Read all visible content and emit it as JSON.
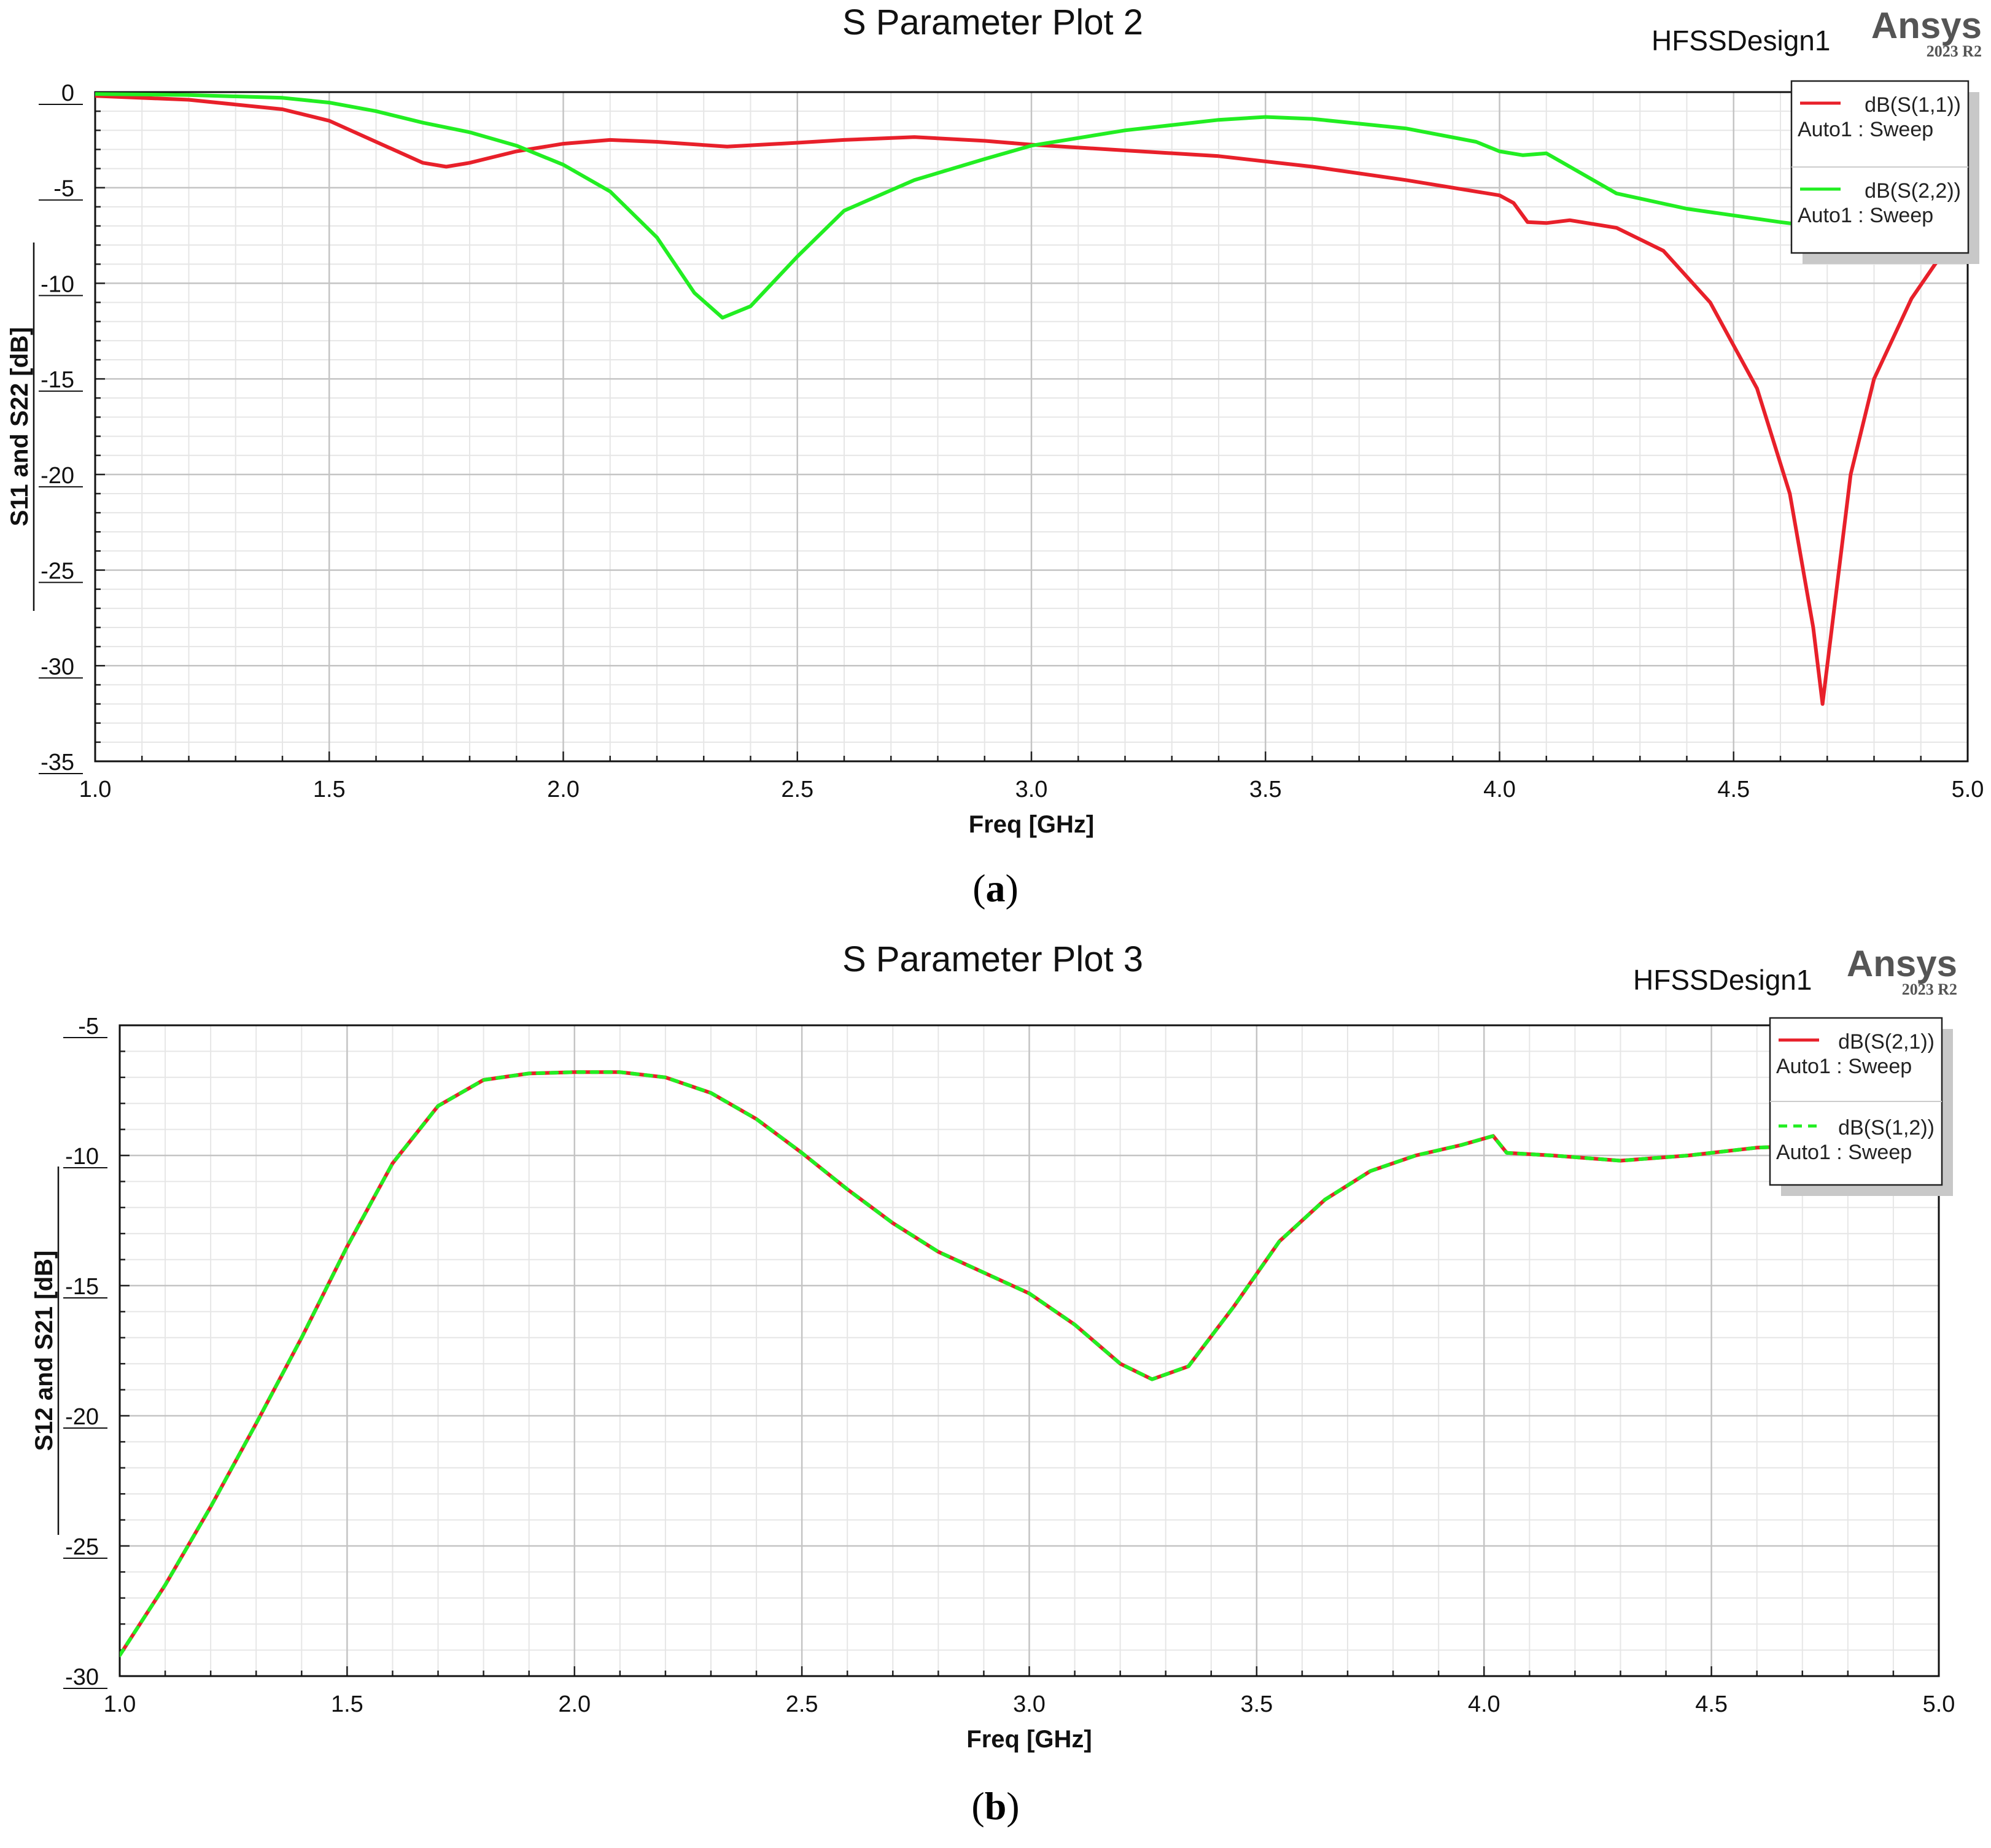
{
  "figure_a": {
    "caption_open": "(",
    "caption_letter": "a",
    "caption_close": ")",
    "title": "S Parameter Plot 2",
    "design_label": "HFSSDesign1",
    "brand": "Ansys",
    "brand_version": "2023 R2",
    "legend": [
      {
        "label": "dB(S(1,1))",
        "sub": "Auto1 : Sweep",
        "color": "#e8202a",
        "dash": false
      },
      {
        "label": "dB(S(2,2))",
        "sub": "Auto1 : Sweep",
        "color": "#22ee22",
        "dash": false
      }
    ]
  },
  "figure_b": {
    "caption_open": "(",
    "caption_letter": "b",
    "caption_close": ")",
    "title": "S Parameter Plot 3",
    "design_label": "HFSSDesign1",
    "brand": "Ansys",
    "brand_version": "2023 R2",
    "legend": [
      {
        "label": "dB(S(2,1))",
        "sub": "Auto1 : Sweep",
        "color": "#e8202a",
        "dash": false
      },
      {
        "label": "dB(S(1,2))",
        "sub": "Auto1 : Sweep",
        "color": "#22ee22",
        "dash": true
      }
    ]
  },
  "chart_data": [
    {
      "type": "line",
      "title": "S Parameter Plot 2",
      "xlabel": "Freq [GHz]",
      "ylabel": "S11 and S22 [dB]",
      "xlim": [
        1.0,
        5.0
      ],
      "ylim": [
        -35,
        0
      ],
      "xticks": [
        1.0,
        1.5,
        2.0,
        2.5,
        3.0,
        3.5,
        4.0,
        4.5,
        5.0
      ],
      "xtick_labels": [
        "1.0",
        "1.5",
        "2.0",
        "2.5",
        "3.0",
        "3.5",
        "4.0",
        "4.5",
        "5.0"
      ],
      "yticks": [
        0,
        -5,
        -10,
        -15,
        -20,
        -25,
        -30,
        -35
      ],
      "ytick_labels": [
        "0",
        "-5",
        "-10",
        "-15",
        "-20",
        "-25",
        "-30",
        "-35"
      ],
      "grid": true,
      "legend_position": "top-right",
      "series": [
        {
          "name": "dB(S(1,1))",
          "color": "#e8202a",
          "points": [
            [
              1.0,
              -0.2
            ],
            [
              1.2,
              -0.4
            ],
            [
              1.4,
              -0.9
            ],
            [
              1.5,
              -1.5
            ],
            [
              1.6,
              -2.6
            ],
            [
              1.7,
              -3.7
            ],
            [
              1.75,
              -3.9
            ],
            [
              1.8,
              -3.7
            ],
            [
              1.9,
              -3.1
            ],
            [
              2.0,
              -2.7
            ],
            [
              2.1,
              -2.5
            ],
            [
              2.2,
              -2.6
            ],
            [
              2.35,
              -2.85
            ],
            [
              2.5,
              -2.65
            ],
            [
              2.6,
              -2.5
            ],
            [
              2.75,
              -2.35
            ],
            [
              2.9,
              -2.55
            ],
            [
              3.0,
              -2.75
            ],
            [
              3.2,
              -3.05
            ],
            [
              3.4,
              -3.35
            ],
            [
              3.6,
              -3.9
            ],
            [
              3.8,
              -4.6
            ],
            [
              4.0,
              -5.4
            ],
            [
              4.03,
              -5.8
            ],
            [
              4.06,
              -6.8
            ],
            [
              4.1,
              -6.85
            ],
            [
              4.15,
              -6.7
            ],
            [
              4.25,
              -7.1
            ],
            [
              4.35,
              -8.3
            ],
            [
              4.45,
              -11.0
            ],
            [
              4.55,
              -15.5
            ],
            [
              4.62,
              -21.0
            ],
            [
              4.67,
              -28.0
            ],
            [
              4.69,
              -32.0
            ],
            [
              4.71,
              -28.0
            ],
            [
              4.75,
              -20.0
            ],
            [
              4.8,
              -15.0
            ],
            [
              4.88,
              -10.8
            ],
            [
              4.95,
              -8.3
            ],
            [
              5.0,
              -7.0
            ]
          ]
        },
        {
          "name": "dB(S(2,2))",
          "color": "#22ee22",
          "points": [
            [
              1.0,
              -0.1
            ],
            [
              1.2,
              -0.15
            ],
            [
              1.4,
              -0.3
            ],
            [
              1.5,
              -0.55
            ],
            [
              1.6,
              -1.0
            ],
            [
              1.7,
              -1.6
            ],
            [
              1.8,
              -2.1
            ],
            [
              1.9,
              -2.8
            ],
            [
              2.0,
              -3.8
            ],
            [
              2.1,
              -5.2
            ],
            [
              2.2,
              -7.6
            ],
            [
              2.28,
              -10.5
            ],
            [
              2.34,
              -11.8
            ],
            [
              2.4,
              -11.2
            ],
            [
              2.5,
              -8.6
            ],
            [
              2.6,
              -6.2
            ],
            [
              2.75,
              -4.6
            ],
            [
              2.9,
              -3.5
            ],
            [
              3.0,
              -2.8
            ],
            [
              3.2,
              -2.0
            ],
            [
              3.4,
              -1.45
            ],
            [
              3.5,
              -1.3
            ],
            [
              3.6,
              -1.4
            ],
            [
              3.8,
              -1.9
            ],
            [
              3.95,
              -2.6
            ],
            [
              4.0,
              -3.1
            ],
            [
              4.05,
              -3.3
            ],
            [
              4.1,
              -3.2
            ],
            [
              4.15,
              -3.9
            ],
            [
              4.25,
              -5.3
            ],
            [
              4.4,
              -6.1
            ],
            [
              4.6,
              -6.8
            ],
            [
              4.8,
              -7.4
            ],
            [
              5.0,
              -7.9
            ]
          ]
        }
      ]
    },
    {
      "type": "line",
      "title": "S Parameter Plot 3",
      "xlabel": "Freq [GHz]",
      "ylabel": "S12 and S21 [dB]",
      "xlim": [
        1.0,
        5.0
      ],
      "ylim": [
        -30,
        -5
      ],
      "xticks": [
        1.0,
        1.5,
        2.0,
        2.5,
        3.0,
        3.5,
        4.0,
        4.5,
        5.0
      ],
      "xtick_labels": [
        "1.0",
        "1.5",
        "2.0",
        "2.5",
        "3.0",
        "3.5",
        "4.0",
        "4.5",
        "5.0"
      ],
      "yticks": [
        -5,
        -10,
        -15,
        -20,
        -25,
        -30
      ],
      "ytick_labels": [
        "-5",
        "-10",
        "-15",
        "-20",
        "-25",
        "-30"
      ],
      "grid": true,
      "legend_position": "top-right",
      "series": [
        {
          "name": "dB(S(2,1))",
          "color": "#e8202a",
          "points": [
            [
              1.0,
              -29.2
            ],
            [
              1.1,
              -26.5
            ],
            [
              1.2,
              -23.5
            ],
            [
              1.3,
              -20.3
            ],
            [
              1.4,
              -17.0
            ],
            [
              1.5,
              -13.5
            ],
            [
              1.6,
              -10.3
            ],
            [
              1.7,
              -8.1
            ],
            [
              1.8,
              -7.1
            ],
            [
              1.9,
              -6.85
            ],
            [
              2.0,
              -6.8
            ],
            [
              2.1,
              -6.8
            ],
            [
              2.2,
              -7.0
            ],
            [
              2.3,
              -7.6
            ],
            [
              2.4,
              -8.6
            ],
            [
              2.5,
              -9.9
            ],
            [
              2.6,
              -11.3
            ],
            [
              2.7,
              -12.6
            ],
            [
              2.8,
              -13.7
            ],
            [
              2.9,
              -14.5
            ],
            [
              3.0,
              -15.3
            ],
            [
              3.1,
              -16.5
            ],
            [
              3.2,
              -18.0
            ],
            [
              3.27,
              -18.6
            ],
            [
              3.35,
              -18.1
            ],
            [
              3.45,
              -15.8
            ],
            [
              3.55,
              -13.3
            ],
            [
              3.65,
              -11.7
            ],
            [
              3.75,
              -10.6
            ],
            [
              3.85,
              -10.0
            ],
            [
              3.95,
              -9.6
            ],
            [
              4.02,
              -9.25
            ],
            [
              4.05,
              -9.9
            ],
            [
              4.15,
              -10.0
            ],
            [
              4.3,
              -10.2
            ],
            [
              4.45,
              -10.0
            ],
            [
              4.6,
              -9.7
            ],
            [
              4.75,
              -9.6
            ],
            [
              4.9,
              -10.0
            ],
            [
              5.0,
              -11.2
            ]
          ]
        },
        {
          "name": "dB(S(1,2))",
          "color": "#22ee22",
          "points": [
            [
              1.0,
              -29.2
            ],
            [
              1.1,
              -26.5
            ],
            [
              1.2,
              -23.5
            ],
            [
              1.3,
              -20.3
            ],
            [
              1.4,
              -17.0
            ],
            [
              1.5,
              -13.5
            ],
            [
              1.6,
              -10.3
            ],
            [
              1.7,
              -8.1
            ],
            [
              1.8,
              -7.1
            ],
            [
              1.9,
              -6.85
            ],
            [
              2.0,
              -6.8
            ],
            [
              2.1,
              -6.8
            ],
            [
              2.2,
              -7.0
            ],
            [
              2.3,
              -7.6
            ],
            [
              2.4,
              -8.6
            ],
            [
              2.5,
              -9.9
            ],
            [
              2.6,
              -11.3
            ],
            [
              2.7,
              -12.6
            ],
            [
              2.8,
              -13.7
            ],
            [
              2.9,
              -14.5
            ],
            [
              3.0,
              -15.3
            ],
            [
              3.1,
              -16.5
            ],
            [
              3.2,
              -18.0
            ],
            [
              3.27,
              -18.6
            ],
            [
              3.35,
              -18.1
            ],
            [
              3.45,
              -15.8
            ],
            [
              3.55,
              -13.3
            ],
            [
              3.65,
              -11.7
            ],
            [
              3.75,
              -10.6
            ],
            [
              3.85,
              -10.0
            ],
            [
              3.95,
              -9.6
            ],
            [
              4.02,
              -9.25
            ],
            [
              4.05,
              -9.9
            ],
            [
              4.15,
              -10.0
            ],
            [
              4.3,
              -10.2
            ],
            [
              4.45,
              -10.0
            ],
            [
              4.6,
              -9.7
            ],
            [
              4.75,
              -9.6
            ],
            [
              4.9,
              -10.0
            ],
            [
              5.0,
              -11.2
            ]
          ]
        }
      ]
    }
  ]
}
